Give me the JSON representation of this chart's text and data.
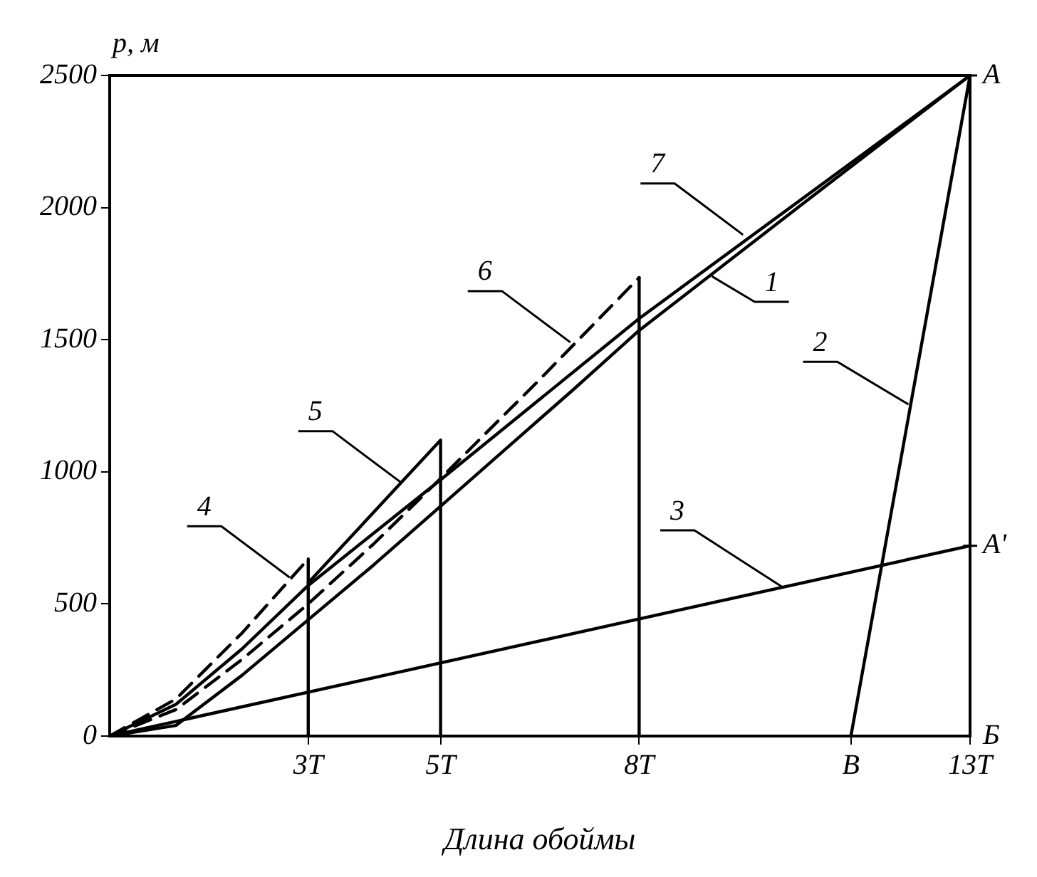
{
  "chart_data": {
    "type": "line",
    "xlabel": "Длина обоймы",
    "ylabel": "р, м",
    "xlim": [
      0,
      13
    ],
    "xticks": [
      {
        "value": 3,
        "label": "3T"
      },
      {
        "value": 5,
        "label": "5T"
      },
      {
        "value": 8,
        "label": "8T"
      },
      {
        "value": 11.2,
        "label": "B"
      },
      {
        "value": 13,
        "label": "13T"
      }
    ],
    "ylim": [
      0,
      2500
    ],
    "yticks": [
      0,
      500,
      1000,
      1500,
      2000,
      2500
    ],
    "grid": false,
    "legend": false,
    "marker": "none",
    "series": [
      {
        "color": "#000000",
        "line_style": "solid",
        "x": [
          0,
          1,
          2,
          3,
          4,
          5,
          6,
          7,
          8,
          10.5,
          13
        ],
        "values": [
          0,
          40,
          230,
          440,
          650,
          870,
          1090,
          1310,
          1535,
          2020,
          2500
        ]
      },
      {
        "color": "#000000",
        "line_style": "solid",
        "x": [
          11.2,
          13
        ],
        "values": [
          0,
          2500
        ]
      },
      {
        "color": "#000000",
        "line_style": "solid",
        "x": [
          0,
          13
        ],
        "values": [
          0,
          720
        ]
      },
      {
        "color": "#000000",
        "line_style": "dashed",
        "x": [
          0,
          1,
          2,
          3
        ],
        "values": [
          0,
          140,
          390,
          670
        ]
      },
      {
        "color": "#000000",
        "line_style": "solid",
        "x": [
          3,
          3
        ],
        "values": [
          670,
          0
        ]
      },
      {
        "color": "#000000",
        "line_style": "solid",
        "x": [
          3,
          5,
          5
        ],
        "values": [
          580,
          1120,
          0
        ]
      },
      {
        "color": "#000000",
        "line_style": "dashed",
        "x": [
          0,
          1,
          2,
          3,
          4,
          5,
          6.5,
          8
        ],
        "values": [
          0,
          100,
          290,
          500,
          730,
          975,
          1350,
          1735
        ]
      },
      {
        "color": "#000000",
        "line_style": "solid",
        "x": [
          8,
          8
        ],
        "values": [
          1735,
          0
        ]
      },
      {
        "color": "#000000",
        "line_style": "solid",
        "x": [
          0,
          1,
          2,
          3,
          5,
          8,
          13
        ],
        "values": [
          0,
          120,
          330,
          570,
          970,
          1580,
          2500
        ]
      }
    ],
    "annotations": [
      {
        "text": "1",
        "x": 9.1,
        "y": 1740
      },
      {
        "text": "2",
        "x": 12.07,
        "y": 1255
      },
      {
        "text": "3",
        "x": 10.17,
        "y": 563
      },
      {
        "text": "4",
        "x": 2.72,
        "y": 600
      },
      {
        "text": "5",
        "x": 4.4,
        "y": 960
      },
      {
        "text": "6",
        "x": 6.96,
        "y": 1490
      },
      {
        "text": "7",
        "x": 9.57,
        "y": 1897
      },
      {
        "text": "A",
        "x": 13,
        "y": 2500
      },
      {
        "text": "A'",
        "x": 13,
        "y": 720
      },
      "Б"
    ]
  }
}
